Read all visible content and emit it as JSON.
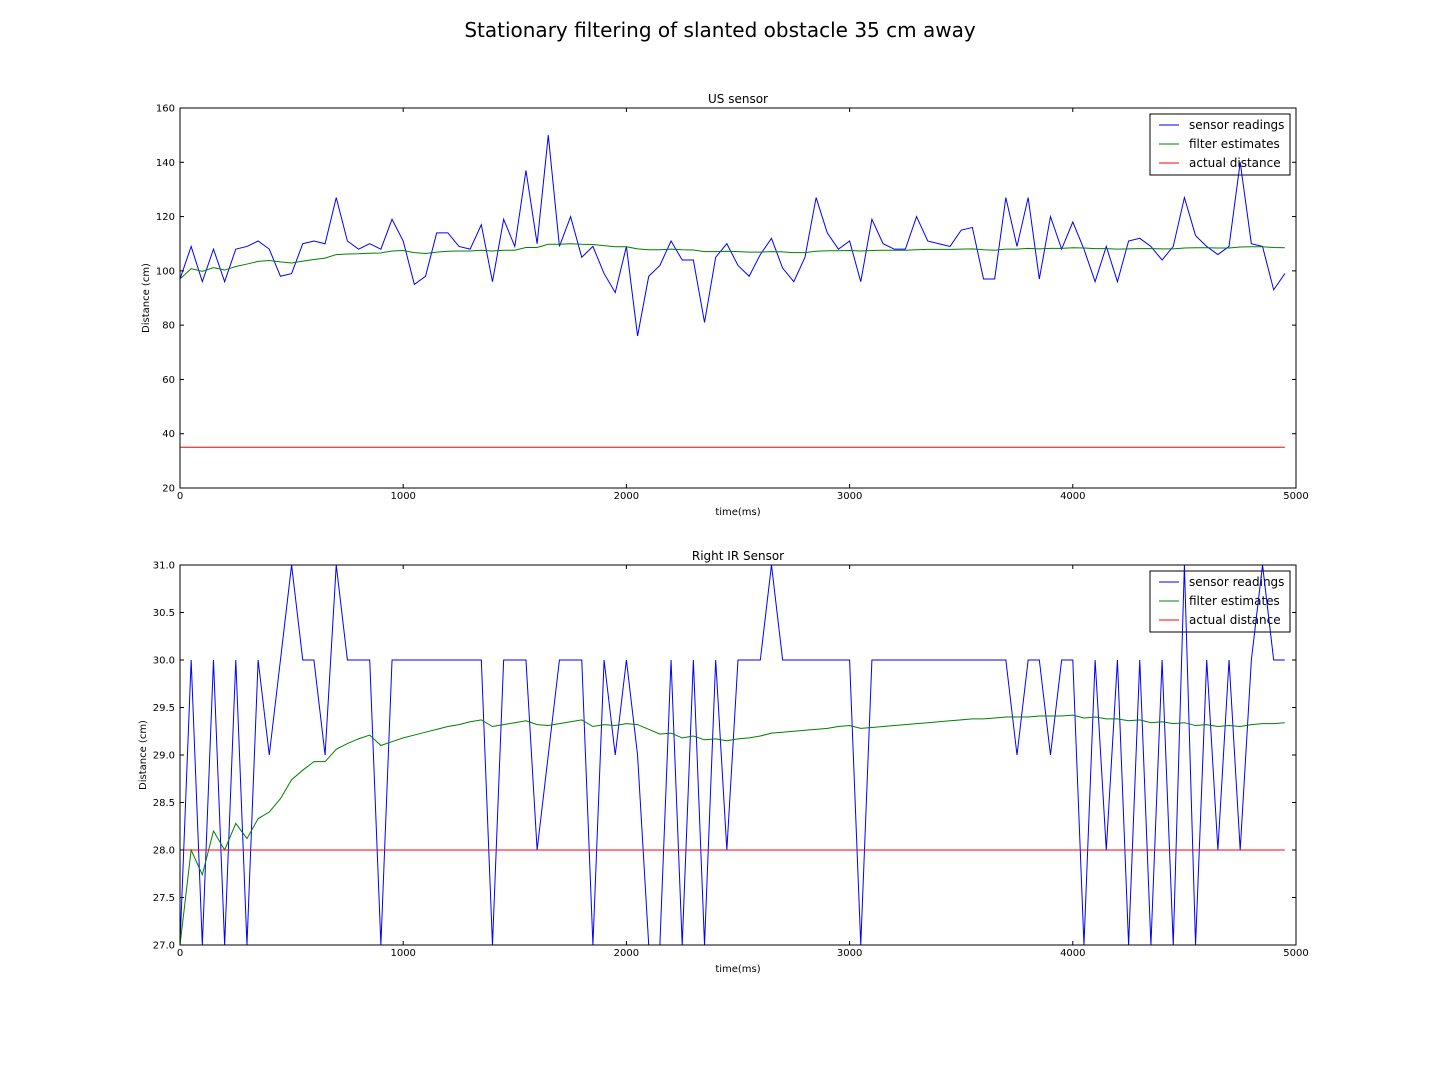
{
  "figure": {
    "suptitle": "Stationary filtering of slanted obstacle 35 cm away"
  },
  "colors": {
    "sensor": "#0000ff",
    "filter": "#008000",
    "actual": "#ff0000"
  },
  "chart_data": [
    {
      "type": "line",
      "title": "US sensor",
      "xlabel": "time(ms)",
      "ylabel": "Distance (cm)",
      "xlim": [
        0,
        5000
      ],
      "ylim": [
        20,
        160
      ],
      "xticks": [
        0,
        1000,
        2000,
        3000,
        4000,
        5000
      ],
      "yticks": [
        20,
        40,
        60,
        80,
        100,
        120,
        140,
        160
      ],
      "legend_loc": "top-right",
      "series": [
        {
          "name": "sensor readings",
          "color": "#0000ff",
          "x": [
            0,
            50,
            100,
            150,
            200,
            250,
            300,
            350,
            400,
            450,
            500,
            550,
            600,
            650,
            700,
            750,
            800,
            850,
            900,
            950,
            1000,
            1050,
            1100,
            1150,
            1200,
            1250,
            1300,
            1350,
            1400,
            1450,
            1500,
            1550,
            1600,
            1650,
            1700,
            1750,
            1800,
            1850,
            1900,
            1950,
            2000,
            2050,
            2100,
            2150,
            2200,
            2250,
            2300,
            2350,
            2400,
            2450,
            2500,
            2550,
            2600,
            2650,
            2700,
            2750,
            2800,
            2850,
            2900,
            2950,
            3000,
            3050,
            3100,
            3150,
            3200,
            3250,
            3300,
            3350,
            3400,
            3450,
            3500,
            3550,
            3600,
            3650,
            3700,
            3750,
            3800,
            3850,
            3900,
            3950,
            4000,
            4050,
            4100,
            4150,
            4200,
            4250,
            4300,
            4350,
            4400,
            4450,
            4500,
            4550,
            4600,
            4650,
            4700,
            4750,
            4800,
            4850,
            4900,
            4950
          ],
          "y": [
            97,
            109,
            96,
            108,
            96,
            108,
            109,
            111,
            108,
            98,
            99,
            110,
            111,
            110,
            127,
            111,
            108,
            110,
            108,
            119,
            111,
            95,
            98,
            114,
            114,
            109,
            108,
            117,
            96,
            119,
            109,
            137,
            110,
            150,
            109,
            120,
            105,
            109,
            99,
            92,
            109,
            76,
            98,
            102,
            111,
            104,
            104,
            81,
            105,
            110,
            102,
            98,
            106,
            112,
            101,
            96,
            105,
            127,
            114,
            108,
            111,
            96,
            119,
            110,
            108,
            108,
            120,
            111,
            110,
            109,
            115,
            116,
            97,
            97,
            127,
            109,
            127,
            97,
            120,
            108,
            118,
            108,
            96,
            109,
            96,
            111,
            112,
            109,
            104,
            109,
            127,
            113,
            109,
            106,
            109,
            140,
            110,
            109,
            93,
            99
          ]
        },
        {
          "name": "filter estimates",
          "color": "#008000",
          "x": [
            0,
            50,
            100,
            150,
            200,
            250,
            300,
            350,
            400,
            450,
            500,
            550,
            600,
            650,
            700,
            750,
            800,
            850,
            900,
            950,
            1000,
            1050,
            1100,
            1150,
            1200,
            1250,
            1300,
            1350,
            1400,
            1450,
            1500,
            1550,
            1600,
            1650,
            1700,
            1750,
            1800,
            1850,
            1900,
            1950,
            2000,
            2050,
            2100,
            2150,
            2200,
            2250,
            2300,
            2350,
            2400,
            2450,
            2500,
            2550,
            2600,
            2650,
            2700,
            2750,
            2800,
            2850,
            2900,
            2950,
            3000,
            3050,
            3100,
            3150,
            3200,
            3250,
            3300,
            3350,
            3400,
            3450,
            3500,
            3550,
            3600,
            3650,
            3700,
            3750,
            3800,
            3850,
            3900,
            3950,
            4000,
            4050,
            4100,
            4150,
            4200,
            4250,
            4300,
            4350,
            4400,
            4450,
            4500,
            4550,
            4600,
            4650,
            4700,
            4750,
            4800,
            4850,
            4900,
            4950
          ],
          "y": [
            97,
            100.8,
            99.8,
            101.2,
            100.3,
            101.6,
            102.5,
            103.5,
            103.8,
            103.3,
            102.9,
            103.6,
            104.2,
            104.7,
            106,
            106.2,
            106.3,
            106.5,
            106.6,
            107.3,
            107.5,
            106.7,
            106.4,
            106.9,
            107.2,
            107.3,
            107.3,
            107.6,
            107.3,
            107.6,
            107.6,
            108.6,
            108.6,
            109.8,
            109.8,
            110,
            109.8,
            109.7,
            109.3,
            108.9,
            108.9,
            108.1,
            107.8,
            107.8,
            108,
            107.8,
            107.7,
            107.1,
            107.1,
            107.2,
            107.1,
            106.9,
            106.9,
            107.1,
            107,
            106.7,
            106.7,
            107.2,
            107.4,
            107.4,
            107.5,
            107.3,
            107.5,
            107.6,
            107.6,
            107.6,
            107.8,
            107.9,
            107.9,
            107.9,
            108,
            108.1,
            107.8,
            107.6,
            108,
            108,
            108.3,
            108.1,
            108.3,
            108.3,
            108.5,
            108.4,
            108.2,
            108.2,
            108,
            108.1,
            108.2,
            108.2,
            108.1,
            108.1,
            108.4,
            108.5,
            108.5,
            108.4,
            108.4,
            108.8,
            108.9,
            108.9,
            108.6,
            108.5
          ]
        },
        {
          "name": "actual distance",
          "color": "#ff0000",
          "x": [
            0,
            4950
          ],
          "y": [
            35,
            35
          ]
        }
      ]
    },
    {
      "type": "line",
      "title": "Right IR Sensor",
      "xlabel": "time(ms)",
      "ylabel": "Distance (cm)",
      "xlim": [
        0,
        5000
      ],
      "ylim": [
        27.0,
        31.0
      ],
      "xticks": [
        0,
        1000,
        2000,
        3000,
        4000,
        5000
      ],
      "yticks": [
        "27.0",
        "27.5",
        "28.0",
        "28.5",
        "29.0",
        "29.5",
        "30.0",
        "30.5",
        "31.0"
      ],
      "legend_loc": "top-right",
      "series": [
        {
          "name": "sensor readings",
          "color": "#0000ff",
          "x": [
            0,
            50,
            100,
            150,
            200,
            250,
            300,
            350,
            400,
            450,
            500,
            550,
            600,
            650,
            700,
            750,
            800,
            850,
            900,
            950,
            1000,
            1050,
            1100,
            1150,
            1200,
            1250,
            1300,
            1350,
            1400,
            1450,
            1500,
            1550,
            1600,
            1650,
            1700,
            1750,
            1800,
            1850,
            1900,
            1950,
            2000,
            2050,
            2100,
            2150,
            2200,
            2250,
            2300,
            2350,
            2400,
            2450,
            2500,
            2550,
            2600,
            2650,
            2700,
            2750,
            2800,
            2850,
            2900,
            2950,
            3000,
            3050,
            3100,
            3150,
            3200,
            3250,
            3300,
            3350,
            3400,
            3450,
            3500,
            3550,
            3600,
            3650,
            3700,
            3750,
            3800,
            3850,
            3900,
            3950,
            4000,
            4050,
            4100,
            4150,
            4200,
            4250,
            4300,
            4350,
            4400,
            4450,
            4500,
            4550,
            4600,
            4650,
            4700,
            4750,
            4800,
            4850,
            4900,
            4950
          ],
          "y": [
            27,
            30,
            27,
            30,
            27,
            30,
            27,
            30,
            29,
            30,
            31,
            30,
            30,
            29,
            31,
            30,
            30,
            30,
            27,
            30,
            30,
            30,
            30,
            30,
            30,
            30,
            30,
            30,
            27,
            30,
            30,
            30,
            28,
            29,
            30,
            30,
            30,
            27,
            30,
            29,
            30,
            29,
            27,
            27,
            30,
            27,
            30,
            27,
            30,
            28,
            30,
            30,
            30,
            31,
            30,
            30,
            30,
            30,
            30,
            30,
            30,
            27,
            30,
            30,
            30,
            30,
            30,
            30,
            30,
            30,
            30,
            30,
            30,
            30,
            30,
            29,
            30,
            30,
            29,
            30,
            30,
            27,
            30,
            28,
            30,
            27,
            30,
            27,
            30,
            27,
            31,
            27,
            30,
            28,
            30,
            28,
            30,
            31,
            30,
            30
          ]
        },
        {
          "name": "filter estimates",
          "color": "#008000",
          "x": [
            0,
            50,
            100,
            150,
            200,
            250,
            300,
            350,
            400,
            450,
            500,
            550,
            600,
            650,
            700,
            750,
            800,
            850,
            900,
            950,
            1000,
            1050,
            1100,
            1150,
            1200,
            1250,
            1300,
            1350,
            1400,
            1450,
            1500,
            1550,
            1600,
            1650,
            1700,
            1750,
            1800,
            1850,
            1900,
            1950,
            2000,
            2050,
            2100,
            2150,
            2200,
            2250,
            2300,
            2350,
            2400,
            2450,
            2500,
            2550,
            2600,
            2650,
            2700,
            2750,
            2800,
            2850,
            2900,
            2950,
            3000,
            3050,
            3100,
            3150,
            3200,
            3250,
            3300,
            3350,
            3400,
            3450,
            3500,
            3550,
            3600,
            3650,
            3700,
            3750,
            3800,
            3850,
            3900,
            3950,
            4000,
            4050,
            4100,
            4150,
            4200,
            4250,
            4300,
            4350,
            4400,
            4450,
            4500,
            4550,
            4600,
            4650,
            4700,
            4750,
            4800,
            4850,
            4900,
            4950
          ],
          "y": [
            27.0,
            28.0,
            27.74,
            28.2,
            28.0,
            28.28,
            28.12,
            28.33,
            28.4,
            28.54,
            28.74,
            28.84,
            28.93,
            28.93,
            29.06,
            29.12,
            29.17,
            29.21,
            29.1,
            29.14,
            29.18,
            29.21,
            29.24,
            29.27,
            29.3,
            29.32,
            29.35,
            29.37,
            29.3,
            29.32,
            29.34,
            29.36,
            29.32,
            29.31,
            29.33,
            29.35,
            29.37,
            29.3,
            29.32,
            29.31,
            29.33,
            29.32,
            29.27,
            29.22,
            29.23,
            29.18,
            29.2,
            29.16,
            29.17,
            29.15,
            29.17,
            29.18,
            29.2,
            29.23,
            29.24,
            29.25,
            29.26,
            29.27,
            29.28,
            29.3,
            29.31,
            29.28,
            29.29,
            29.3,
            29.31,
            29.32,
            29.33,
            29.34,
            29.35,
            29.36,
            29.37,
            29.38,
            29.38,
            29.39,
            29.4,
            29.4,
            29.4,
            29.41,
            29.41,
            29.41,
            29.42,
            29.39,
            29.4,
            29.38,
            29.38,
            29.36,
            29.37,
            29.34,
            29.35,
            29.33,
            29.34,
            29.31,
            29.32,
            29.3,
            29.31,
            29.3,
            29.32,
            29.33,
            29.33,
            29.34
          ]
        },
        {
          "name": "actual distance",
          "color": "#ff0000",
          "x": [
            0,
            4950
          ],
          "y": [
            28,
            28
          ]
        }
      ]
    }
  ]
}
